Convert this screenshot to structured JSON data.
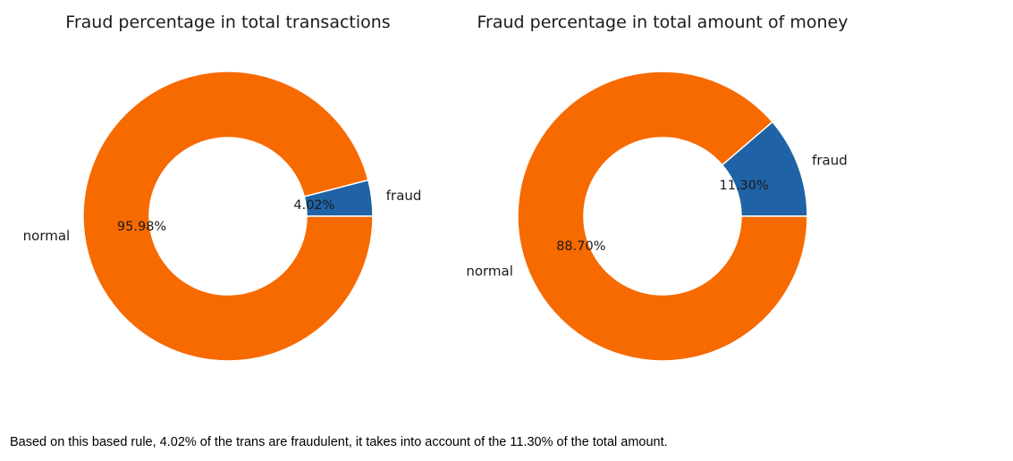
{
  "chart_data": [
    {
      "type": "pie",
      "style": "donut",
      "title": "Fraud percentage in total transactions",
      "slices": [
        {
          "label": "fraud",
          "value": 4.02,
          "pct_label": "4.02%",
          "color": "#1f63a6"
        },
        {
          "label": "normal",
          "value": 95.98,
          "pct_label": "95.98%",
          "color": "#f76a00"
        }
      ]
    },
    {
      "type": "pie",
      "style": "donut",
      "title": "Fraud percentage in total amount of money",
      "slices": [
        {
          "label": "fraud",
          "value": 11.3,
          "pct_label": "11.30%",
          "color": "#1f63a6"
        },
        {
          "label": "normal",
          "value": 88.7,
          "pct_label": "88.70%",
          "color": "#f76a00"
        }
      ]
    }
  ],
  "caption": "Based on this based rule, 4.02% of the trans are fraudulent, it takes into account of the 11.30% of the total amount."
}
